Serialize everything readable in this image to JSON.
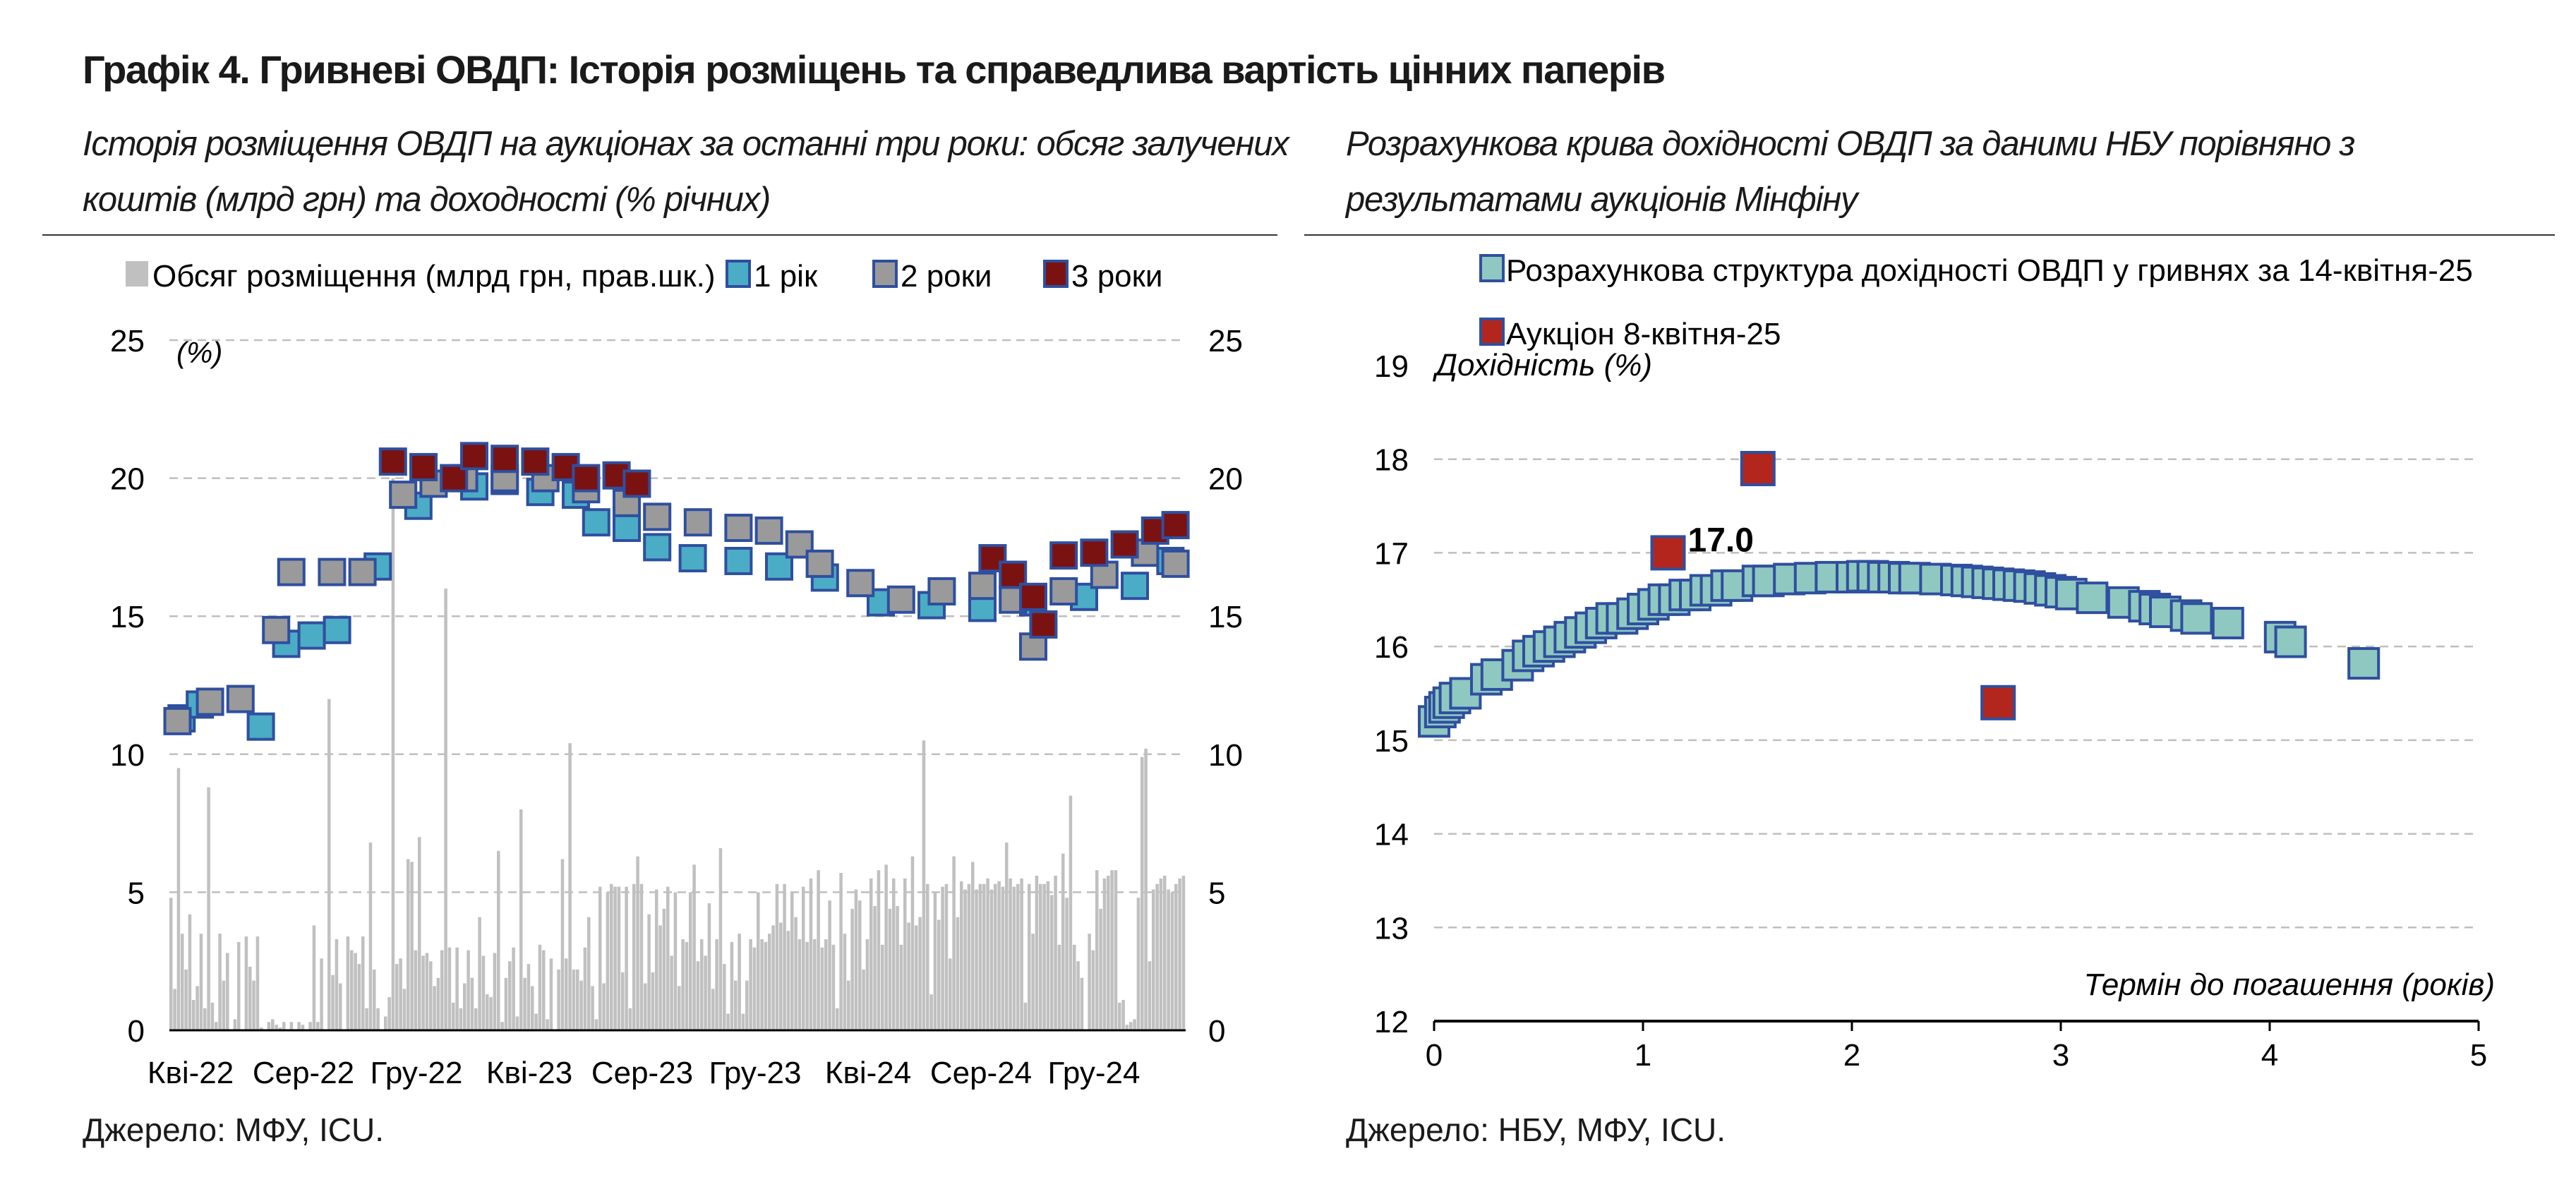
{
  "title": "Графік 4. Гривневі ОВДП: Історія розміщень та справедлива вартість цінних паперів",
  "left_panel": {
    "subtitle": "Історія розміщення ОВДП на аукціонах за останні три роки: обсяг залучених коштів (млрд грн) та доходності (% річних)",
    "source": "Джерело: МФУ, ICU."
  },
  "right_panel": {
    "subtitle": "Розрахункова крива дохідності ОВДП за даними НБУ порівняно з результатами аукціонів Мінфіну",
    "source": "Джерело: НБУ, МФУ, ICU."
  },
  "colors": {
    "volume_bar": "#c0c0c0",
    "y1": "#4bacc6",
    "y2": "#9a9a9a",
    "y3": "#7a1212",
    "marker_border": "#2f4f9f",
    "curve_fill": "#8fc8c0",
    "auction_fill": "#b3261e",
    "grid": "#bfbfbf"
  },
  "chart_data": [
    {
      "type": "bar+scatter",
      "ylabel": "(%)",
      "ylim": [
        0,
        25
      ],
      "y_ticks": [
        "0",
        "5",
        "10",
        "15",
        "20",
        "25"
      ],
      "x_ticks": [
        "Кві-22",
        "Сер-22",
        "Гру-22",
        "Кві-23",
        "Сер-23",
        "Гру-23",
        "Кві-24",
        "Сер-24",
        "Гру-24"
      ],
      "legend": [
        "Обсяг розміщення (млрд грн, прав.шк.)",
        "1 рік",
        "2 роки",
        "3 роки"
      ],
      "legend_position": "top",
      "grid": true,
      "volume_bn_uah": [
        4.8,
        1.5,
        9.5,
        3.5,
        2.2,
        4.2,
        1.1,
        1.6,
        3.5,
        0.8,
        8.8,
        1.0,
        0.3,
        3.5,
        1.8,
        2.8,
        0.0,
        0.4,
        3.2,
        0.0,
        3.4,
        2.3,
        1.8,
        3.4,
        0.1,
        0.0,
        0.3,
        0.4,
        0.2,
        0.1,
        0.3,
        0.0,
        0.3,
        0.0,
        0.3,
        0.2,
        0.0,
        0.3,
        3.8,
        0.3,
        2.6,
        0.0,
        12.0,
        2.0,
        3.3,
        1.7,
        0.0,
        3.4,
        2.9,
        2.8,
        2.4,
        3.4,
        0.8,
        6.8,
        2.2,
        0.8,
        0.0,
        0.5,
        1.2,
        20.0,
        2.4,
        2.6,
        1.5,
        6.2,
        6.1,
        2.9,
        7.0,
        2.7,
        2.8,
        2.5,
        1.6,
        1.9,
        2.9,
        16.0,
        3.0,
        1.0,
        3.0,
        0.8,
        1.7,
        2.9,
        1.9,
        0.8,
        4.1,
        2.7,
        1.3,
        1.2,
        2.8,
        6.5,
        0.3,
        1.9,
        2.5,
        3.0,
        0.5,
        8.0,
        1.9,
        2.4,
        1.6,
        0.6,
        3.1,
        2.9,
        0.4,
        2.6,
        0.0,
        2.2,
        6.2,
        2.6,
        10.4,
        2.2,
        2.2,
        1.8,
        3.0,
        4.1,
        1.6,
        0.4,
        5.2,
        1.7,
        5.0,
        5.3,
        5.2,
        5.2,
        2.1,
        5.2,
        0.8,
        5.3,
        6.3,
        5.3,
        1.7,
        4.2,
        2.1,
        5.1,
        3.8,
        4.4,
        5.2,
        2.7,
        5.0,
        1.6,
        3.3,
        3.2,
        5.0,
        6.0,
        2.5,
        3.3,
        2.7,
        4.6,
        1.5,
        3.3,
        6.6,
        2.4,
        0.6,
        3.2,
        1.8,
        3.5,
        0.6,
        1.8,
        3.3,
        3.0,
        5.0,
        3.3,
        3.2,
        3.5,
        3.8,
        5.3,
        3.9,
        5.3,
        3.6,
        5.0,
        4.1,
        3.3,
        5.2,
        3.2,
        5.5,
        3.3,
        5.8,
        3.0,
        3.3,
        4.7,
        3.1,
        0.8,
        5.7,
        3.5,
        1.8,
        4.4,
        5.1,
        4.7,
        2.2,
        3.3,
        5.5,
        4.5,
        5.8,
        3.1,
        6.0,
        4.4,
        5.5,
        4.5,
        3.1,
        5.5,
        3.9,
        6.3,
        3.8,
        4.1,
        10.5,
        5.3,
        1.3,
        5.0,
        4.0,
        5.2,
        5.3,
        2.6,
        6.3,
        4.1,
        5.4,
        5.1,
        5.3,
        6.1,
        5.1,
        5.3,
        5.3,
        5.5,
        5.1,
        5.3,
        5.4,
        5.2,
        6.8,
        5.5,
        5.2,
        5.3,
        5.5,
        1.0,
        5.3,
        3.5,
        5.6,
        5.3,
        5.3,
        5.4,
        4.9,
        5.6,
        3.1,
        6.4,
        4.8,
        8.5,
        3.1,
        2.5,
        1.9,
        0.0,
        3.5,
        2.9,
        5.8,
        4.4,
        5.5,
        5.6,
        5.8,
        5.8,
        1.0,
        1.1,
        0.2,
        0.3,
        0.4,
        4.8,
        9.9,
        10.2,
        2.5,
        5.1,
        5.3,
        5.5,
        5.6,
        5.1,
        5.0,
        5.3,
        5.5,
        5.6
      ],
      "yield_1y": [
        [
          0.012,
          11.3
        ],
        [
          0.03,
          11.8
        ],
        [
          0.09,
          11.0
        ],
        [
          0.115,
          14.0
        ],
        [
          0.14,
          14.3
        ],
        [
          0.165,
          14.5
        ],
        [
          0.205,
          16.8
        ],
        [
          0.245,
          19.0
        ],
        [
          0.3,
          19.7
        ],
        [
          0.33,
          19.9
        ],
        [
          0.365,
          19.5
        ],
        [
          0.4,
          19.4
        ],
        [
          0.42,
          18.4
        ],
        [
          0.45,
          18.2
        ],
        [
          0.48,
          17.5
        ],
        [
          0.515,
          17.1
        ],
        [
          0.56,
          17.0
        ],
        [
          0.6,
          16.8
        ],
        [
          0.645,
          16.4
        ],
        [
          0.7,
          15.5
        ],
        [
          0.75,
          15.4
        ],
        [
          0.8,
          15.3
        ],
        [
          0.85,
          15.5
        ],
        [
          0.9,
          15.7
        ],
        [
          0.95,
          16.1
        ],
        [
          0.985,
          17.0
        ]
      ],
      "yield_2y": [
        [
          0.008,
          11.2
        ],
        [
          0.04,
          11.9
        ],
        [
          0.07,
          12.0
        ],
        [
          0.105,
          14.5
        ],
        [
          0.12,
          16.6
        ],
        [
          0.16,
          16.6
        ],
        [
          0.19,
          16.6
        ],
        [
          0.23,
          19.4
        ],
        [
          0.26,
          19.8
        ],
        [
          0.29,
          20.0
        ],
        [
          0.33,
          20.0
        ],
        [
          0.37,
          20.0
        ],
        [
          0.41,
          19.6
        ],
        [
          0.45,
          19.1
        ],
        [
          0.48,
          18.6
        ],
        [
          0.52,
          18.4
        ],
        [
          0.56,
          18.2
        ],
        [
          0.59,
          18.1
        ],
        [
          0.62,
          17.6
        ],
        [
          0.64,
          16.9
        ],
        [
          0.68,
          16.2
        ],
        [
          0.72,
          15.6
        ],
        [
          0.76,
          15.9
        ],
        [
          0.8,
          16.1
        ],
        [
          0.83,
          15.6
        ],
        [
          0.85,
          13.9
        ],
        [
          0.88,
          15.9
        ],
        [
          0.92,
          16.5
        ],
        [
          0.96,
          17.3
        ],
        [
          0.99,
          16.9
        ]
      ],
      "yield_3y": [
        [
          0.22,
          20.6
        ],
        [
          0.25,
          20.4
        ],
        [
          0.28,
          20.0
        ],
        [
          0.3,
          20.8
        ],
        [
          0.33,
          20.7
        ],
        [
          0.36,
          20.6
        ],
        [
          0.39,
          20.4
        ],
        [
          0.41,
          20.0
        ],
        [
          0.44,
          20.1
        ],
        [
          0.46,
          19.8
        ],
        [
          0.81,
          17.1
        ],
        [
          0.83,
          16.5
        ],
        [
          0.85,
          15.7
        ],
        [
          0.86,
          14.7
        ],
        [
          0.88,
          17.2
        ],
        [
          0.91,
          17.3
        ],
        [
          0.94,
          17.6
        ],
        [
          0.97,
          18.1
        ],
        [
          0.99,
          18.3
        ]
      ]
    },
    {
      "type": "scatter",
      "xlabel": "Термін до погашення (років)",
      "ylabel": "Дохідність (%)",
      "xlim": [
        0,
        5
      ],
      "ylim": [
        12,
        19
      ],
      "x_ticks": [
        "0",
        "1",
        "2",
        "3",
        "4",
        "5"
      ],
      "y_ticks": [
        "12",
        "13",
        "14",
        "15",
        "16",
        "17",
        "18",
        "19"
      ],
      "grid": true,
      "legend_position": "top",
      "series": [
        {
          "name": "Розрахункова структура дохідності ОВДП у гривнях за 14-квітня-25",
          "points": [
            [
              0.0,
              15.2
            ],
            [
              0.03,
              15.3
            ],
            [
              0.05,
              15.35
            ],
            [
              0.07,
              15.4
            ],
            [
              0.1,
              15.45
            ],
            [
              0.15,
              15.5
            ],
            [
              0.25,
              15.65
            ],
            [
              0.3,
              15.7
            ],
            [
              0.4,
              15.8
            ],
            [
              0.45,
              15.9
            ],
            [
              0.5,
              15.95
            ],
            [
              0.55,
              16.0
            ],
            [
              0.6,
              16.05
            ],
            [
              0.65,
              16.1
            ],
            [
              0.7,
              16.15
            ],
            [
              0.75,
              16.2
            ],
            [
              0.8,
              16.25
            ],
            [
              0.85,
              16.3
            ],
            [
              0.9,
              16.3
            ],
            [
              0.95,
              16.35
            ],
            [
              1.0,
              16.4
            ],
            [
              1.05,
              16.45
            ],
            [
              1.1,
              16.5
            ],
            [
              1.15,
              16.5
            ],
            [
              1.2,
              16.55
            ],
            [
              1.25,
              16.55
            ],
            [
              1.3,
              16.6
            ],
            [
              1.35,
              16.6
            ],
            [
              1.4,
              16.65
            ],
            [
              1.45,
              16.65
            ],
            [
              1.55,
              16.7
            ],
            [
              1.6,
              16.7
            ],
            [
              1.7,
              16.72
            ],
            [
              1.8,
              16.73
            ],
            [
              1.9,
              16.74
            ],
            [
              2.0,
              16.74
            ],
            [
              2.05,
              16.75
            ],
            [
              2.1,
              16.75
            ],
            [
              2.15,
              16.74
            ],
            [
              2.2,
              16.74
            ],
            [
              2.25,
              16.73
            ],
            [
              2.3,
              16.73
            ],
            [
              2.4,
              16.72
            ],
            [
              2.5,
              16.71
            ],
            [
              2.55,
              16.7
            ],
            [
              2.6,
              16.69
            ],
            [
              2.65,
              16.68
            ],
            [
              2.7,
              16.67
            ],
            [
              2.75,
              16.66
            ],
            [
              2.8,
              16.65
            ],
            [
              2.85,
              16.64
            ],
            [
              2.9,
              16.62
            ],
            [
              2.95,
              16.6
            ],
            [
              3.0,
              16.58
            ],
            [
              3.05,
              16.56
            ],
            [
              3.15,
              16.52
            ],
            [
              3.3,
              16.47
            ],
            [
              3.4,
              16.43
            ],
            [
              3.45,
              16.4
            ],
            [
              3.5,
              16.37
            ],
            [
              3.6,
              16.33
            ],
            [
              3.65,
              16.3
            ],
            [
              3.8,
              16.25
            ],
            [
              4.05,
              16.1
            ],
            [
              4.1,
              16.05
            ],
            [
              4.45,
              15.82
            ]
          ]
        },
        {
          "name": "Аукціон 8-квітня-25",
          "points": [
            [
              1.12,
              17.0
            ],
            [
              1.55,
              17.9
            ],
            [
              2.7,
              15.4
            ]
          ],
          "label": "17.0"
        }
      ]
    }
  ]
}
